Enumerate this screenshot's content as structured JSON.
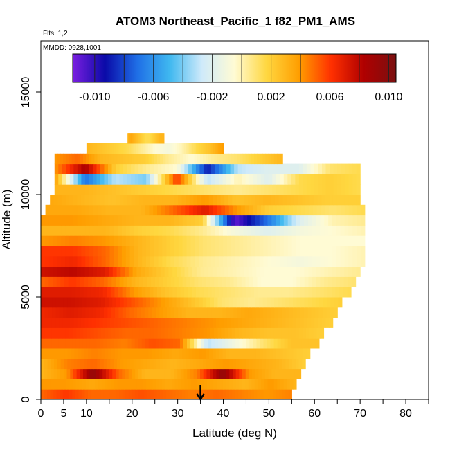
{
  "chart_data": {
    "type": "heatmap",
    "title": "ATOM3 Northeast_Pacific_1 f82_PM1_AMS",
    "subtitle_flights": "Flts: 1,2",
    "subtitle_dates": "MMDD: 0928,1001",
    "xlabel": "Latitude (deg N)",
    "ylabel": "Altitude (m)",
    "xlim": [
      0,
      85
    ],
    "ylim": [
      0,
      17500
    ],
    "xticks": [
      0,
      5,
      10,
      20,
      30,
      40,
      50,
      60,
      70,
      80
    ],
    "xtick_labels": [
      "0",
      "5",
      "10",
      "20",
      "30",
      "40",
      "50",
      "60",
      "70",
      "80"
    ],
    "yticks": [
      0,
      5000,
      10000,
      15000
    ],
    "ytick_labels": [
      "0",
      "5000",
      "10000",
      "15000"
    ],
    "colorbar": {
      "range": [
        -0.0115,
        0.0105
      ],
      "ticks": [
        -0.01,
        -0.006,
        -0.002,
        0.002,
        0.006,
        0.01
      ],
      "tick_labels": [
        "-0.010",
        "-0.006",
        "-0.002",
        "0.002",
        "0.006",
        "0.010"
      ],
      "colors": [
        "#7a1ee0",
        "#0a0aa8",
        "#1f6fe6",
        "#3fb8f0",
        "#cfeafa",
        "#fffbd4",
        "#ffd740",
        "#ff9e00",
        "#ff3000",
        "#b00000",
        "#7a1010"
      ]
    },
    "arrow_latitude": 35,
    "band_height_m": 500,
    "bands": [
      {
        "alt": 250,
        "x0": 0,
        "x1": 55,
        "v": [
          0.005,
          0.006,
          0.005,
          0.005,
          0.0055,
          0.005,
          0.0045,
          0.005,
          0.0045,
          0.004,
          0.0045
        ]
      },
      {
        "alt": 750,
        "x0": 0,
        "x1": 56,
        "v": [
          0.004,
          0.004,
          0.0035,
          0.004,
          0.004,
          0.0035,
          0.004,
          0.0035,
          0.003,
          0.004,
          0.003
        ]
      },
      {
        "alt": 1250,
        "x0": 0,
        "x1": 57,
        "v": [
          0.003,
          0.004,
          0.0095,
          0.005,
          0.003,
          0.003,
          0.0045,
          0.0095,
          0.004,
          0.003,
          0.003
        ]
      },
      {
        "alt": 1750,
        "x0": 0,
        "x1": 58,
        "v": [
          0.003,
          0.0045,
          0.005,
          0.004,
          0.0035,
          0.003,
          0.0035,
          0.004,
          0.0035,
          0.003,
          0.002
        ]
      },
      {
        "alt": 2250,
        "x0": 0,
        "x1": 59,
        "v": [
          0.004,
          0.004,
          0.0045,
          0.004,
          0.004,
          0.0035,
          0.004,
          0.003,
          0.003,
          0.0025,
          0.002
        ]
      },
      {
        "alt": 2750,
        "x0": 0,
        "x1": 61,
        "v": [
          0.005,
          0.005,
          0.005,
          0.0045,
          0.0055,
          0.005,
          -0.003,
          -0.001,
          0.001,
          0.0025,
          0.0025
        ]
      },
      {
        "alt": 3250,
        "x0": 0,
        "x1": 62,
        "v": [
          0.006,
          0.006,
          0.0055,
          0.005,
          0.005,
          0.0045,
          0.004,
          0.003,
          0.0025,
          0.0025,
          0.002
        ]
      },
      {
        "alt": 3750,
        "x0": 0,
        "x1": 64,
        "v": [
          0.0065,
          0.0065,
          0.006,
          0.0055,
          0.005,
          0.0045,
          0.004,
          0.0035,
          0.003,
          0.0025,
          0.002
        ]
      },
      {
        "alt": 4250,
        "x0": 0,
        "x1": 65,
        "v": [
          0.0065,
          0.007,
          0.0065,
          0.005,
          0.004,
          0.003,
          0.003,
          0.0035,
          0.003,
          0.0025,
          0.002
        ]
      },
      {
        "alt": 4750,
        "x0": 0,
        "x1": 66,
        "v": [
          0.0075,
          0.0075,
          0.007,
          0.0055,
          0.004,
          0.0025,
          0.001,
          0.0005,
          0.001,
          0.0015,
          0.002
        ]
      },
      {
        "alt": 5250,
        "x0": 0,
        "x1": 68,
        "v": [
          0.007,
          0.007,
          0.0065,
          0.004,
          0.0025,
          0.0015,
          0.001,
          0.0005,
          0.0005,
          0.001,
          0.0015
        ]
      },
      {
        "alt": 5750,
        "x0": 0,
        "x1": 69,
        "v": [
          0.005,
          0.006,
          0.005,
          0.003,
          0.002,
          0.001,
          0.0005,
          -0.0005,
          -0.0005,
          0.0005,
          0.001
        ]
      },
      {
        "alt": 6250,
        "x0": 0,
        "x1": 70,
        "v": [
          0.0075,
          0.008,
          0.007,
          0.0035,
          0.002,
          0.0005,
          0.0,
          -0.0005,
          -0.0005,
          0.0,
          0.0005
        ]
      },
      {
        "alt": 6750,
        "x0": 0,
        "x1": 71,
        "v": [
          0.006,
          0.0065,
          0.005,
          0.003,
          0.0015,
          0.0005,
          0.0,
          -0.0005,
          -0.001,
          -0.0005,
          0.0
        ]
      },
      {
        "alt": 7250,
        "x0": 0,
        "x1": 71,
        "v": [
          0.006,
          0.006,
          0.005,
          0.003,
          0.002,
          0.001,
          0.0005,
          0.0,
          -0.0005,
          -0.0005,
          0.0
        ]
      },
      {
        "alt": 7750,
        "x0": 0,
        "x1": 71,
        "v": [
          0.004,
          0.0045,
          0.004,
          0.003,
          0.002,
          0.001,
          0.0005,
          0.0,
          -0.0005,
          -0.0005,
          -0.0005
        ]
      },
      {
        "alt": 8250,
        "x0": 0,
        "x1": 71,
        "v": [
          0.003,
          0.003,
          0.003,
          0.002,
          0.0015,
          0.0005,
          -0.001,
          -0.002,
          -0.001,
          -0.0005,
          0.0
        ]
      },
      {
        "alt": 8750,
        "x0": 0,
        "x1": 71,
        "v": [
          0.004,
          0.004,
          0.0035,
          0.003,
          0.003,
          0.002,
          -0.011,
          -0.007,
          -0.002,
          0.0,
          0.0005
        ]
      },
      {
        "alt": 9250,
        "x0": 1,
        "x1": 71,
        "v": [
          0.0035,
          0.0035,
          0.003,
          0.003,
          0.005,
          0.007,
          0.004,
          0.002,
          0.0015,
          0.001,
          0.0015
        ]
      },
      {
        "alt": 9750,
        "x0": 2,
        "x1": 70,
        "v": [
          0.0035,
          0.003,
          0.0025,
          0.003,
          0.003,
          0.004,
          0.0025,
          0.003,
          0.0025,
          0.002,
          0.002
        ]
      },
      {
        "alt": 10250,
        "x0": 3,
        "x1": 70,
        "v": [
          0.003,
          0.003,
          0.0025,
          0.002,
          0.0015,
          0.001,
          0.0005,
          0.001,
          0.0015,
          0.002,
          0.0015
        ]
      },
      {
        "alt": 10750,
        "x0": 3,
        "x1": 70,
        "v": [
          0.004,
          -0.007,
          -0.003,
          -0.004,
          0.006,
          -0.003,
          0.0,
          -0.002,
          0.0015,
          0.002,
          0.0015
        ]
      },
      {
        "alt": 11250,
        "x0": 3,
        "x1": 70,
        "v": [
          0.004,
          0.0085,
          0.002,
          0.0005,
          -0.0005,
          -0.009,
          -0.003,
          -0.002,
          -0.002,
          0.001,
          0.0015
        ]
      },
      {
        "alt": 11750,
        "x0": 3,
        "x1": 53,
        "v": [
          0.004,
          0.005,
          0.003,
          0.0025,
          0.002,
          0.0005,
          -0.0005,
          0.0005,
          0.001,
          0.002,
          0.003
        ]
      },
      {
        "alt": 12250,
        "x0": 10,
        "x1": 40,
        "v": [
          0.003,
          0.0025,
          0.002,
          0.0015,
          0.0005,
          -0.0005,
          -0.001,
          0.0,
          0.0015,
          0.0025,
          0.004
        ]
      },
      {
        "alt": 12750,
        "x0": 19,
        "x1": 27,
        "v": [
          0.003,
          0.0035,
          0.003,
          0.0025,
          0.002,
          0.0015,
          0.0015,
          0.002,
          0.0025,
          0.003,
          0.003
        ]
      }
    ]
  }
}
